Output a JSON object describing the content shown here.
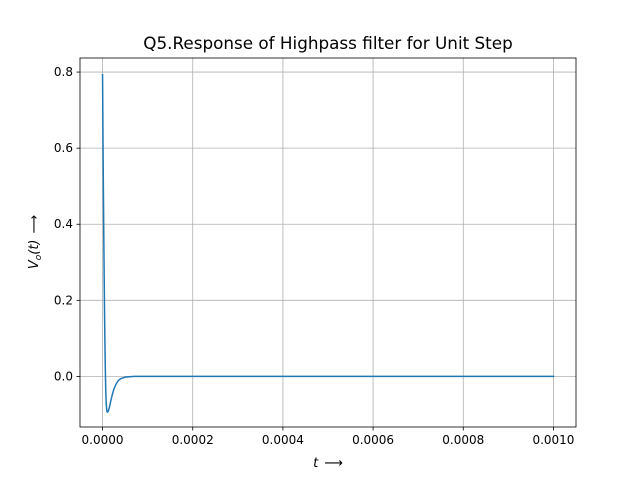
{
  "chart_data": {
    "type": "line",
    "title": "Q5.Response of Highpass filter for Unit Step",
    "xlabel_var": "t",
    "xlabel_arrow": "⟶",
    "ylabel_var_base": "V",
    "ylabel_var_sub": "o",
    "ylabel_var_arg": "(t)",
    "ylabel_arrow": "⟶",
    "xlim": [
      -5e-05,
      0.00105
    ],
    "ylim": [
      -0.133,
      0.837
    ],
    "xticks": [
      0.0,
      0.0002,
      0.0004,
      0.0006,
      0.0008,
      0.001
    ],
    "xtick_labels": [
      "0.0000",
      "0.0002",
      "0.0004",
      "0.0006",
      "0.0008",
      "0.0010"
    ],
    "yticks": [
      0.0,
      0.2,
      0.4,
      0.6,
      0.8
    ],
    "ytick_labels": [
      "0.0",
      "0.2",
      "0.4",
      "0.6",
      "0.8"
    ],
    "grid": true,
    "series": [
      {
        "color": "#1f77b4",
        "x": [
          0,
          1e-06,
          2e-06,
          3e-06,
          4e-06,
          5e-06,
          6e-06,
          7e-06,
          8e-06,
          9e-06,
          1e-05,
          1.1e-05,
          1.2e-05,
          1.3e-05,
          1.4e-05,
          1.5e-05,
          1.6e-05,
          1.7e-05,
          1.8e-05,
          2e-05,
          2.2e-05,
          2.5e-05,
          3e-05,
          3.5e-05,
          4e-05,
          5e-05,
          6e-05,
          7e-05,
          8e-05,
          9e-05,
          0.0001,
          0.00012,
          0.00015,
          0.0002,
          0.0003,
          0.0005,
          0.0007,
          0.001
        ],
        "y": [
          0.793,
          0.62,
          0.47,
          0.335,
          0.215,
          0.11,
          0.03,
          -0.03,
          -0.068,
          -0.085,
          -0.093,
          -0.094,
          -0.093,
          -0.09,
          -0.086,
          -0.082,
          -0.077,
          -0.072,
          -0.066,
          -0.056,
          -0.046,
          -0.034,
          -0.02,
          -0.011,
          -0.006,
          -0.002,
          -0.001,
          0.0,
          0.0,
          0.0,
          0.0,
          0.0,
          0.0,
          0.0,
          0.0,
          0.0,
          0.0,
          0.0
        ]
      }
    ]
  }
}
